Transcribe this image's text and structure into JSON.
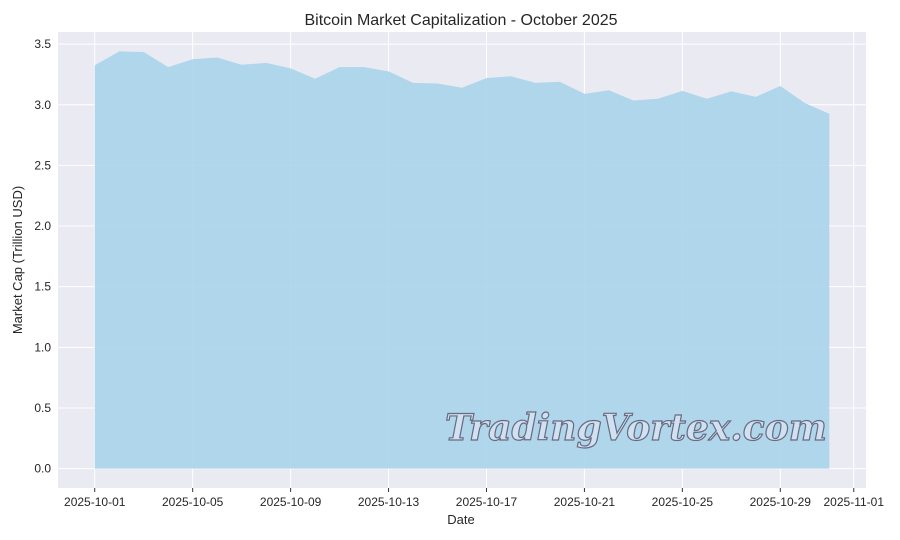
{
  "chart_data": {
    "type": "area",
    "title": "Bitcoin Market Capitalization - October 2025",
    "xlabel": "Date",
    "ylabel": "Market Cap (Trillion USD)",
    "x": [
      "2025-10-01",
      "2025-10-02",
      "2025-10-03",
      "2025-10-04",
      "2025-10-05",
      "2025-10-06",
      "2025-10-07",
      "2025-10-08",
      "2025-10-09",
      "2025-10-10",
      "2025-10-11",
      "2025-10-12",
      "2025-10-13",
      "2025-10-14",
      "2025-10-15",
      "2025-10-16",
      "2025-10-17",
      "2025-10-18",
      "2025-10-19",
      "2025-10-20",
      "2025-10-21",
      "2025-10-22",
      "2025-10-23",
      "2025-10-24",
      "2025-10-25",
      "2025-10-26",
      "2025-10-27",
      "2025-10-28",
      "2025-10-29",
      "2025-10-30",
      "2025-10-31"
    ],
    "values": [
      3.325,
      3.44,
      3.435,
      3.31,
      3.375,
      3.39,
      3.33,
      3.345,
      3.3,
      3.215,
      3.31,
      3.31,
      3.275,
      3.18,
      3.175,
      3.14,
      3.22,
      3.235,
      3.18,
      3.19,
      3.09,
      3.12,
      3.035,
      3.05,
      3.115,
      3.05,
      3.11,
      3.065,
      3.155,
      3.015,
      2.925
    ],
    "xticks": [
      "2025-10-01",
      "2025-10-05",
      "2025-10-09",
      "2025-10-13",
      "2025-10-17",
      "2025-10-21",
      "2025-10-25",
      "2025-10-29",
      "2025-11-01"
    ],
    "yticks": [
      "0.0",
      "0.5",
      "1.0",
      "1.5",
      "2.0",
      "2.5",
      "3.0",
      "3.5"
    ],
    "ylim": [
      -0.16,
      3.6
    ],
    "xlim": [
      "2025-09-29.5",
      "2025-11-01.5"
    ],
    "grid": true,
    "fill_color": "#a8d4ea",
    "background_color": "#eaeaf2"
  },
  "watermark": "TradingVortex.com"
}
